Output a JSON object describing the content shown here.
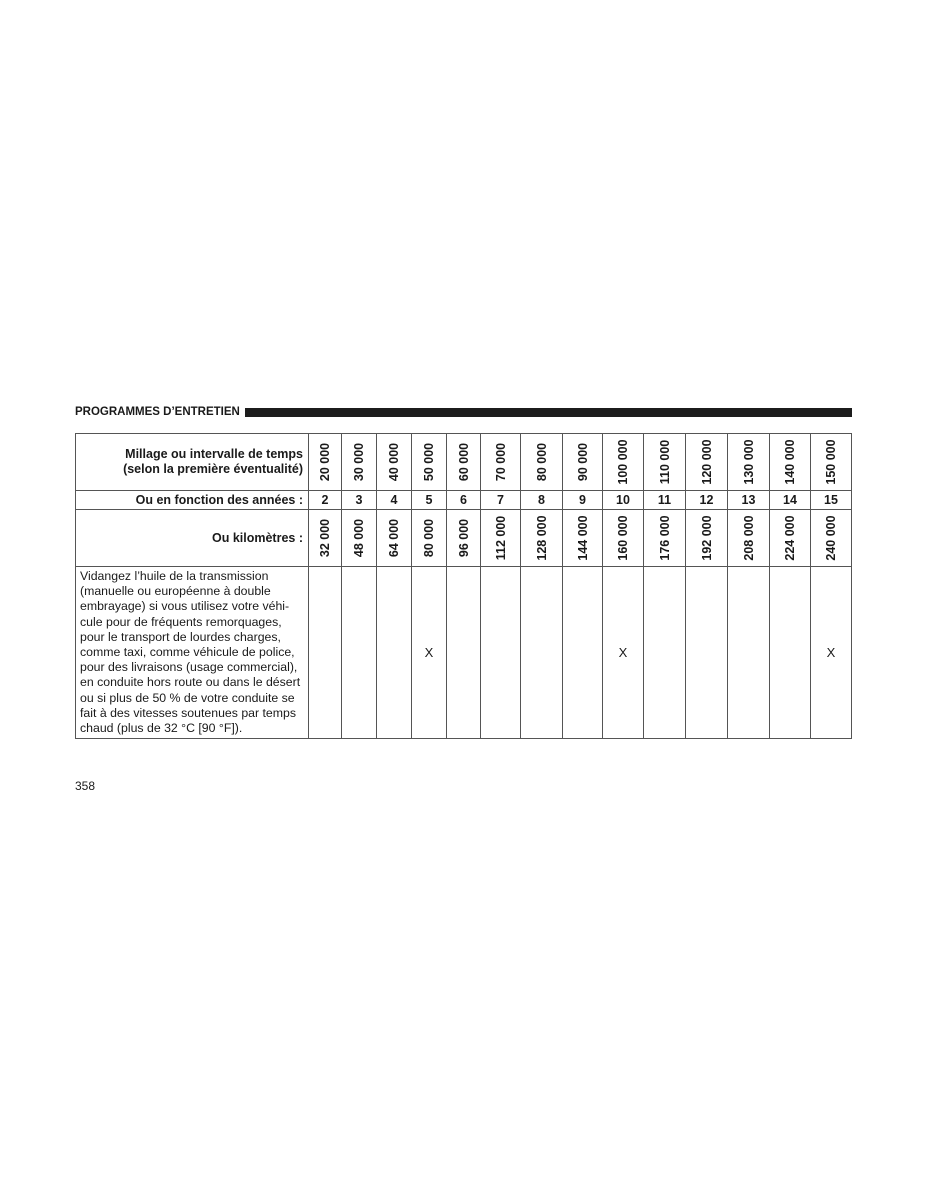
{
  "section_title": "PROGRAMMES D’ENTRETIEN",
  "table": {
    "row_mileage_label": [
      "Millage ou intervalle de temps",
      "(selon la première éventualité)"
    ],
    "row_years_label": "Ou en fonction des années :",
    "row_km_label": "Ou kilomètres :",
    "miles": [
      "20 000",
      "30 000",
      "40 000",
      "50 000",
      "60 000",
      "70 000",
      "80 000",
      "90 000",
      "100 000",
      "110 000",
      "120 000",
      "130 000",
      "140 000",
      "150 000"
    ],
    "years": [
      "2",
      "3",
      "4",
      "5",
      "6",
      "7",
      "8",
      "9",
      "10",
      "11",
      "12",
      "13",
      "14",
      "15"
    ],
    "km": [
      "32 000",
      "48 000",
      "64 000",
      "80 000",
      "96 000",
      "112 000",
      "128 000",
      "144 000",
      "160 000",
      "176 000",
      "192 000",
      "208 000",
      "224 000",
      "240 000"
    ],
    "tasks": [
      {
        "description": "Vidangez l’huile de la transmission (manuelle ou européenne à double embrayage) si vous utilisez votre véhi­cule pour de fréquents remorquages, pour le transport de lourdes charges, comme taxi, comme véhicule de po­lice, pour des livraisons (usage com­mercial), en conduite hors route ou dans le désert ou si plus de 50 % de votre conduite se fait à des vitesses soutenues par temps chaud (plus de 32 °C [90 °F]).",
        "marks": [
          "",
          "",
          "",
          "X",
          "",
          "",
          "",
          "",
          "X",
          "",
          "",
          "",
          "",
          "X"
        ]
      }
    ]
  },
  "page_number": "358"
}
